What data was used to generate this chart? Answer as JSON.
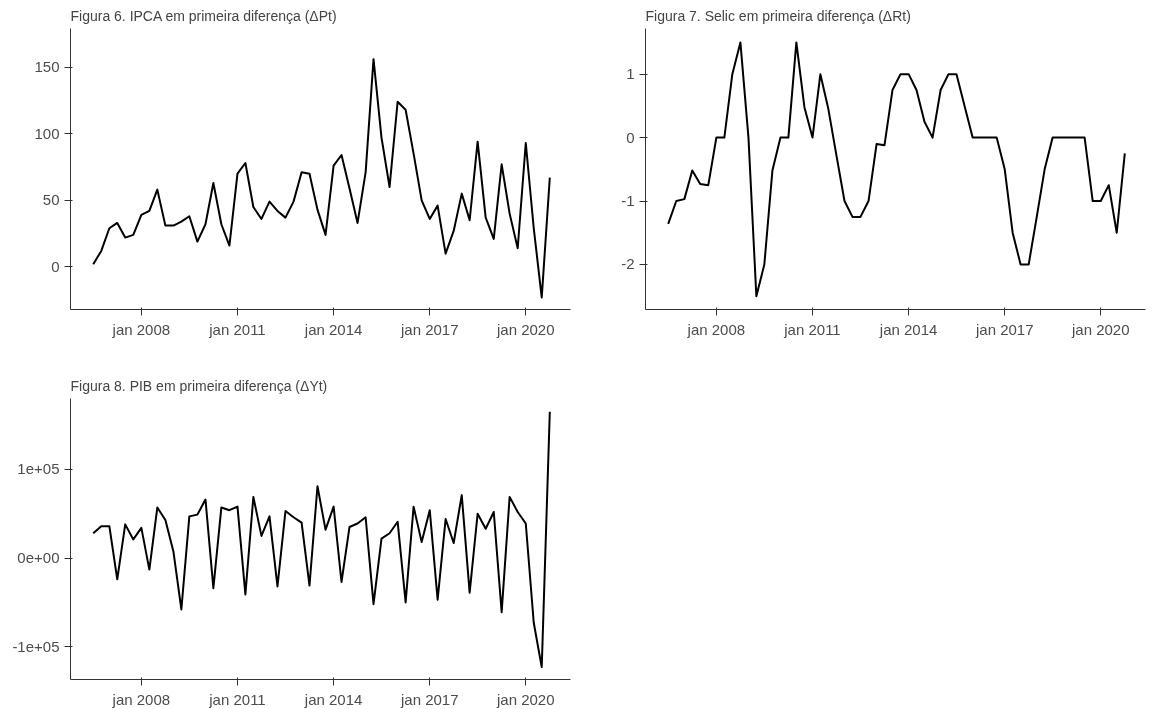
{
  "chart_data": [
    {
      "type": "line",
      "title": "Figura 6. IPCA em primeira diferença (ΔPt)",
      "x": [
        "2006-07",
        "2006-10",
        "2007-01",
        "2007-04",
        "2007-07",
        "2007-10",
        "2008-01",
        "2008-04",
        "2008-07",
        "2008-10",
        "2009-01",
        "2009-04",
        "2009-07",
        "2009-10",
        "2010-01",
        "2010-04",
        "2010-07",
        "2010-10",
        "2011-01",
        "2011-04",
        "2011-07",
        "2011-10",
        "2012-01",
        "2012-04",
        "2012-07",
        "2012-10",
        "2013-01",
        "2013-04",
        "2013-07",
        "2013-10",
        "2014-01",
        "2014-04",
        "2014-07",
        "2014-10",
        "2015-01",
        "2015-04",
        "2015-07",
        "2015-10",
        "2016-01",
        "2016-04",
        "2016-07",
        "2016-10",
        "2017-01",
        "2017-04",
        "2017-07",
        "2017-10",
        "2018-01",
        "2018-04",
        "2018-07",
        "2018-10",
        "2019-01",
        "2019-04",
        "2019-07",
        "2019-10",
        "2020-01",
        "2020-04",
        "2020-07",
        "2020-10"
      ],
      "series": [
        {
          "color": "#000000",
          "values": [
            2,
            12,
            29,
            33,
            22,
            24,
            39,
            42,
            58,
            31,
            31,
            34,
            38,
            19,
            32,
            63,
            32,
            16,
            70,
            78,
            45,
            36,
            49,
            42,
            37,
            49,
            71,
            70,
            43,
            24,
            76,
            84,
            59,
            33,
            71,
            156,
            97,
            60,
            124,
            118,
            85,
            50,
            36,
            46,
            10,
            27,
            55,
            35,
            94,
            37,
            21,
            77,
            40,
            14,
            93,
            29,
            -23,
            67
          ]
        }
      ],
      "xlim": [
        "2005-10-15",
        "2021-05-25"
      ],
      "ylim": [
        -32,
        179
      ],
      "xticks": [
        {
          "value": "2008-01-01",
          "label": "jan 2008"
        },
        {
          "value": "2011-01-01",
          "label": "jan 2011"
        },
        {
          "value": "2014-01-01",
          "label": "jan 2014"
        },
        {
          "value": "2017-01-01",
          "label": "jan 2017"
        },
        {
          "value": "2020-01-01",
          "label": "jan 2020"
        }
      ],
      "yticks": [
        0,
        50,
        100,
        150
      ],
      "grid": false,
      "line_style": "solid",
      "marker": "none"
    },
    {
      "type": "line",
      "title": "Figura 7. Selic em primeira diferença (ΔRt)",
      "x": [
        "2006-07",
        "2006-10",
        "2007-01",
        "2007-04",
        "2007-07",
        "2007-10",
        "2008-01",
        "2008-04",
        "2008-07",
        "2008-10",
        "2009-01",
        "2009-04",
        "2009-07",
        "2009-10",
        "2010-01",
        "2010-04",
        "2010-07",
        "2010-10",
        "2011-01",
        "2011-04",
        "2011-07",
        "2011-10",
        "2012-01",
        "2012-04",
        "2012-07",
        "2012-10",
        "2013-01",
        "2013-04",
        "2013-07",
        "2013-10",
        "2014-01",
        "2014-04",
        "2014-07",
        "2014-10",
        "2015-01",
        "2015-04",
        "2015-07",
        "2015-10",
        "2016-01",
        "2016-04",
        "2016-07",
        "2016-10",
        "2017-01",
        "2017-04",
        "2017-07",
        "2017-10",
        "2018-01",
        "2018-04",
        "2018-07",
        "2018-10",
        "2019-01",
        "2019-04",
        "2019-07",
        "2019-10",
        "2020-01",
        "2020-04",
        "2020-07",
        "2020-10"
      ],
      "series": [
        {
          "color": "#000000",
          "values": [
            -1.36,
            -1,
            -0.97,
            -0.52,
            -0.73,
            -0.75,
            0,
            0,
            1,
            1.5,
            0,
            -2.5,
            -2,
            -0.52,
            0,
            0,
            1.5,
            0.48,
            0,
            1,
            0.45,
            -0.28,
            -1,
            -1.25,
            -1.25,
            -1,
            -0.1,
            -0.12,
            0.75,
            1,
            1,
            0.75,
            0.25,
            0,
            0.75,
            1,
            1,
            0.5,
            0,
            0,
            0,
            0,
            -0.5,
            -1.5,
            -2,
            -2,
            -1.25,
            -0.5,
            0,
            0,
            0,
            0,
            0,
            -1,
            -1,
            -0.75,
            -1.5,
            -0.25
          ]
        }
      ],
      "xlim": [
        "2005-10-15",
        "2021-05-25"
      ],
      "ylim": [
        -2.71,
        1.72
      ],
      "xticks": [
        {
          "value": "2008-01-01",
          "label": "jan 2008"
        },
        {
          "value": "2011-01-01",
          "label": "jan 2011"
        },
        {
          "value": "2014-01-01",
          "label": "jan 2014"
        },
        {
          "value": "2017-01-01",
          "label": "jan 2017"
        },
        {
          "value": "2020-01-01",
          "label": "jan 2020"
        }
      ],
      "yticks": [
        -2,
        -1,
        0,
        1
      ],
      "grid": false,
      "line_style": "solid",
      "marker": "none"
    },
    {
      "type": "line",
      "title": "Figura 8. PIB em primeira diferença (ΔYt)",
      "x": [
        "2006-07",
        "2006-10",
        "2007-01",
        "2007-04",
        "2007-07",
        "2007-10",
        "2008-01",
        "2008-04",
        "2008-07",
        "2008-10",
        "2009-01",
        "2009-04",
        "2009-07",
        "2009-10",
        "2010-01",
        "2010-04",
        "2010-07",
        "2010-10",
        "2011-01",
        "2011-04",
        "2011-07",
        "2011-10",
        "2012-01",
        "2012-04",
        "2012-07",
        "2012-10",
        "2013-01",
        "2013-04",
        "2013-07",
        "2013-10",
        "2014-01",
        "2014-04",
        "2014-07",
        "2014-10",
        "2015-01",
        "2015-04",
        "2015-07",
        "2015-10",
        "2016-01",
        "2016-04",
        "2016-07",
        "2016-10",
        "2017-01",
        "2017-04",
        "2017-07",
        "2017-10",
        "2018-01",
        "2018-04",
        "2018-07",
        "2018-10",
        "2019-01",
        "2019-04",
        "2019-07",
        "2019-10",
        "2020-01",
        "2020-04",
        "2020-07",
        "2020-10"
      ],
      "series": [
        {
          "color": "#000000",
          "values": [
            28000,
            36000,
            36000,
            -24000,
            38000,
            21000,
            34000,
            -13000,
            57000,
            43000,
            7000,
            -58000,
            47000,
            49000,
            66000,
            -34000,
            57000,
            54000,
            58000,
            -41000,
            69000,
            25000,
            47000,
            -32000,
            53000,
            46000,
            40000,
            -31000,
            81000,
            32000,
            58000,
            -27000,
            35000,
            39000,
            46000,
            -52000,
            22000,
            28000,
            41000,
            -50000,
            58000,
            18000,
            54000,
            -47000,
            44000,
            17000,
            71000,
            -39000,
            50000,
            33000,
            52000,
            -61000,
            69000,
            52000,
            39000,
            -73000,
            -123000,
            165000
          ]
        }
      ],
      "xlim": [
        "2005-10-15",
        "2021-05-25"
      ],
      "ylim": [
        -137000,
        180000
      ],
      "xticks": [
        {
          "value": "2008-01-01",
          "label": "jan 2008"
        },
        {
          "value": "2011-01-01",
          "label": "jan 2011"
        },
        {
          "value": "2014-01-01",
          "label": "jan 2014"
        },
        {
          "value": "2017-01-01",
          "label": "jan 2017"
        },
        {
          "value": "2020-01-01",
          "label": "jan 2020"
        }
      ],
      "yticks": [
        {
          "value": -100000,
          "label": "-1e+05"
        },
        {
          "value": 0,
          "label": "0e+00"
        },
        {
          "value": 100000,
          "label": "1e+05"
        }
      ],
      "grid": false,
      "line_style": "solid",
      "marker": "none"
    }
  ]
}
